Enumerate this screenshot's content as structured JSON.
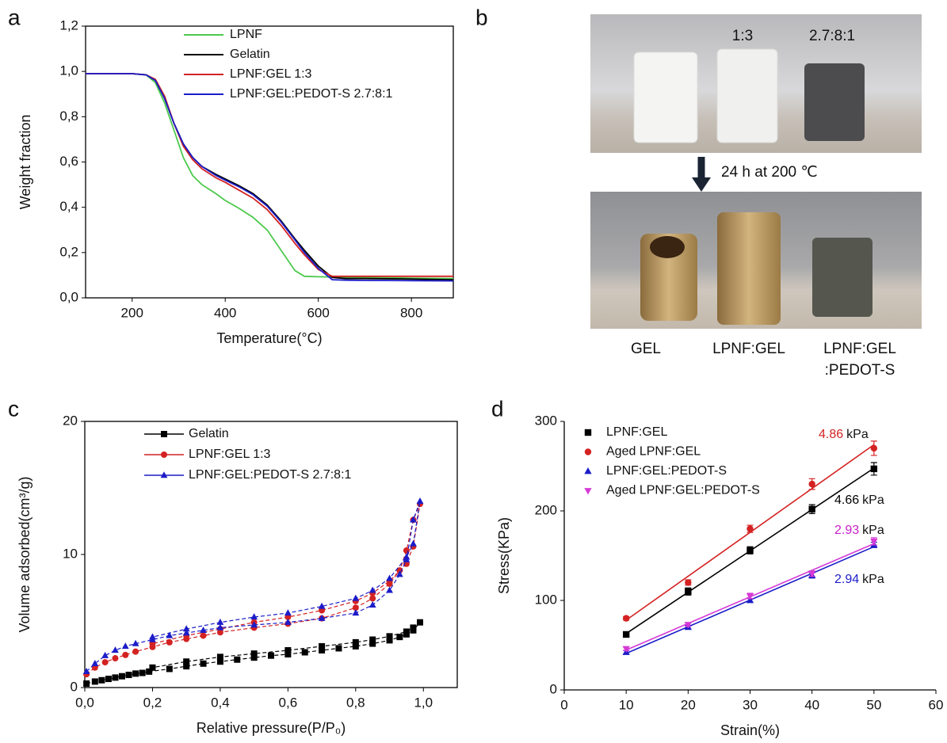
{
  "chart_data": [
    {
      "panel_label": "a",
      "type": "line",
      "xlabel": "Temperature(°C)",
      "ylabel": "Weight fraction",
      "x": [
        100,
        150,
        200,
        230,
        250,
        270,
        290,
        310,
        330,
        350,
        380,
        400,
        430,
        460,
        490,
        520,
        550,
        570,
        600,
        630,
        660,
        700,
        800,
        890
      ],
      "xlim": [
        100,
        890
      ],
      "xticks": [
        200,
        400,
        600,
        800
      ],
      "ylim": [
        0,
        1.2
      ],
      "yticks": [
        {
          "value": 0,
          "label": "0,0"
        },
        {
          "value": 0.2,
          "label": "0,2"
        },
        {
          "value": 0.4,
          "label": "0,4"
        },
        {
          "value": 0.6,
          "label": "0,6"
        },
        {
          "value": 0.8,
          "label": "0,8"
        },
        {
          "value": 1.0,
          "label": "1,0"
        },
        {
          "value": 1.2,
          "label": "1,2"
        }
      ],
      "series": [
        {
          "name": "LPNF",
          "color": "#4cc94c",
          "values": [
            0.99,
            0.99,
            0.99,
            0.985,
            0.95,
            0.86,
            0.74,
            0.62,
            0.54,
            0.5,
            0.46,
            0.43,
            0.395,
            0.355,
            0.3,
            0.21,
            0.12,
            0.095,
            0.093,
            0.092,
            0.09,
            0.09,
            0.087,
            0.085
          ]
        },
        {
          "name": "Gelatin",
          "color": "#000000",
          "values": [
            0.99,
            0.99,
            0.99,
            0.985,
            0.96,
            0.88,
            0.77,
            0.68,
            0.62,
            0.58,
            0.545,
            0.525,
            0.495,
            0.46,
            0.41,
            0.34,
            0.26,
            0.21,
            0.14,
            0.09,
            0.085,
            0.085,
            0.083,
            0.08
          ]
        },
        {
          "name": "LPNF:GEL 1:3",
          "color": "#d42222",
          "values": [
            0.99,
            0.99,
            0.99,
            0.985,
            0.965,
            0.89,
            0.77,
            0.67,
            0.61,
            0.57,
            0.53,
            0.51,
            0.475,
            0.44,
            0.39,
            0.32,
            0.24,
            0.19,
            0.125,
            0.095,
            0.095,
            0.095,
            0.095,
            0.095
          ]
        },
        {
          "name": "LPNF:GEL:PEDOT-S 2.7:8:1",
          "color": "#1c1cc8",
          "values": [
            0.99,
            0.99,
            0.99,
            0.985,
            0.96,
            0.88,
            0.77,
            0.68,
            0.62,
            0.58,
            0.54,
            0.52,
            0.49,
            0.455,
            0.405,
            0.335,
            0.255,
            0.2,
            0.13,
            0.08,
            0.078,
            0.077,
            0.076,
            0.075
          ]
        }
      ]
    },
    {
      "panel_label": "c",
      "type": "line",
      "xlabel": "Relative pressure(P/P₀)",
      "ylabel": "Volume adsorbed(cm³/g)",
      "xlim": [
        0,
        1.1
      ],
      "xticks": [
        {
          "value": 0,
          "label": "0,0"
        },
        {
          "value": 0.2,
          "label": "0,2"
        },
        {
          "value": 0.4,
          "label": "0,4"
        },
        {
          "value": 0.6,
          "label": "0,6"
        },
        {
          "value": 0.8,
          "label": "0,8"
        },
        {
          "value": 1.0,
          "label": "1,0"
        }
      ],
      "ylim": [
        0,
        20
      ],
      "yticks": [
        0,
        10,
        20
      ],
      "series": [
        {
          "name": "Gelatin",
          "color": "#000000",
          "marker": "square",
          "x": [
            0.005,
            0.03,
            0.05,
            0.07,
            0.09,
            0.11,
            0.13,
            0.15,
            0.17,
            0.19,
            0.25,
            0.3,
            0.35,
            0.4,
            0.45,
            0.5,
            0.55,
            0.6,
            0.65,
            0.7,
            0.75,
            0.8,
            0.85,
            0.9,
            0.93,
            0.95,
            0.97,
            0.99,
            0.97,
            0.95,
            0.9,
            0.85,
            0.8,
            0.7,
            0.6,
            0.5,
            0.4,
            0.3,
            0.2
          ],
          "values": [
            0.3,
            0.45,
            0.55,
            0.65,
            0.75,
            0.85,
            0.95,
            1.05,
            1.1,
            1.2,
            1.4,
            1.6,
            1.8,
            1.95,
            2.1,
            2.25,
            2.4,
            2.5,
            2.65,
            2.8,
            2.95,
            3.1,
            3.3,
            3.55,
            3.8,
            4.0,
            4.3,
            4.9,
            4.5,
            4.2,
            3.85,
            3.6,
            3.4,
            3.1,
            2.8,
            2.55,
            2.3,
            1.95,
            1.5
          ]
        },
        {
          "name": "LPNF:GEL 1:3",
          "color": "#d42222",
          "marker": "circle",
          "x": [
            0.005,
            0.03,
            0.06,
            0.09,
            0.12,
            0.15,
            0.2,
            0.25,
            0.3,
            0.35,
            0.4,
            0.5,
            0.6,
            0.7,
            0.8,
            0.85,
            0.9,
            0.93,
            0.95,
            0.97,
            0.99,
            0.97,
            0.95,
            0.9,
            0.85,
            0.8,
            0.7,
            0.6,
            0.5,
            0.4,
            0.3,
            0.2
          ],
          "values": [
            1.0,
            1.5,
            1.9,
            2.2,
            2.45,
            2.7,
            3.05,
            3.4,
            3.65,
            3.9,
            4.15,
            4.5,
            4.8,
            5.2,
            6.0,
            6.7,
            7.8,
            8.8,
            10.3,
            12.6,
            13.8,
            10.6,
            9.3,
            8.0,
            7.1,
            6.5,
            5.8,
            5.3,
            4.9,
            4.4,
            3.9,
            3.3
          ]
        },
        {
          "name": "LPNF:GEL:PEDOT-S 2.7:8:1",
          "color": "#1c1cc8",
          "marker": "triangle",
          "x": [
            0.005,
            0.03,
            0.06,
            0.09,
            0.12,
            0.15,
            0.2,
            0.25,
            0.3,
            0.35,
            0.4,
            0.5,
            0.6,
            0.7,
            0.8,
            0.85,
            0.9,
            0.93,
            0.95,
            0.97,
            0.99,
            0.97,
            0.95,
            0.9,
            0.85,
            0.8,
            0.7,
            0.6,
            0.5,
            0.4,
            0.3,
            0.2
          ],
          "values": [
            1.2,
            1.8,
            2.4,
            2.8,
            3.1,
            3.3,
            3.6,
            3.9,
            4.1,
            4.3,
            4.5,
            4.7,
            4.9,
            5.2,
            5.6,
            6.2,
            7.3,
            8.5,
            9.6,
            12.6,
            14.0,
            10.8,
            9.8,
            8.2,
            7.3,
            6.7,
            6.1,
            5.6,
            5.3,
            4.9,
            4.4,
            3.8
          ]
        }
      ]
    },
    {
      "panel_label": "d",
      "type": "scatter",
      "xlabel": "Strain(%)",
      "ylabel": "Stress(KPa)",
      "x": [
        10,
        20,
        30,
        40,
        50
      ],
      "xlim": [
        0,
        60
      ],
      "xticks": [
        0,
        10,
        20,
        30,
        40,
        50,
        60
      ],
      "ylim": [
        0,
        300
      ],
      "yticks": [
        0,
        100,
        200,
        300
      ],
      "series": [
        {
          "name": "LPNF:GEL",
          "color": "#000000",
          "marker": "square",
          "values": [
            62,
            110,
            156,
            202,
            247
          ],
          "errors": [
            3,
            4,
            4,
            5,
            7
          ]
        },
        {
          "name": "Aged LPNF:GEL",
          "color": "#d42222",
          "marker": "circle",
          "values": [
            80,
            120,
            180,
            230,
            270
          ],
          "errors": [
            2,
            3,
            4,
            6,
            8
          ]
        },
        {
          "name": "LPNF:GEL:PEDOT-S",
          "color": "#1c1cc8",
          "marker": "triangle",
          "values": [
            42,
            70,
            100,
            128,
            162
          ],
          "errors": [
            2,
            2,
            2,
            3,
            3
          ]
        },
        {
          "name": "Aged LPNF:GEL:PEDOT-S",
          "color": "#d63ad6",
          "marker": "triangle-down",
          "values": [
            46,
            73,
            105,
            130,
            166
          ],
          "errors": [
            2,
            2,
            3,
            3,
            4
          ]
        }
      ],
      "annotations": [
        {
          "text": "4.86",
          "unit": "kPa",
          "color": "#d42222"
        },
        {
          "text": "4.66",
          "unit": "kPa",
          "color": "#000000"
        },
        {
          "text": "2.93",
          "unit": "kPa",
          "color": "#c81fc8"
        },
        {
          "text": "2.94",
          "unit": "kPa",
          "color": "#1c1cc8"
        }
      ]
    }
  ],
  "photo_panel": {
    "panel_label": "b",
    "top_labels": [
      "1:3",
      "2.7:8:1"
    ],
    "arrow_label": "24 h at 200 ℃",
    "bottom_labels": [
      [
        "GEL"
      ],
      [
        "LPNF:GEL"
      ],
      [
        "LPNF:GEL",
        ":PEDOT-S"
      ]
    ]
  }
}
